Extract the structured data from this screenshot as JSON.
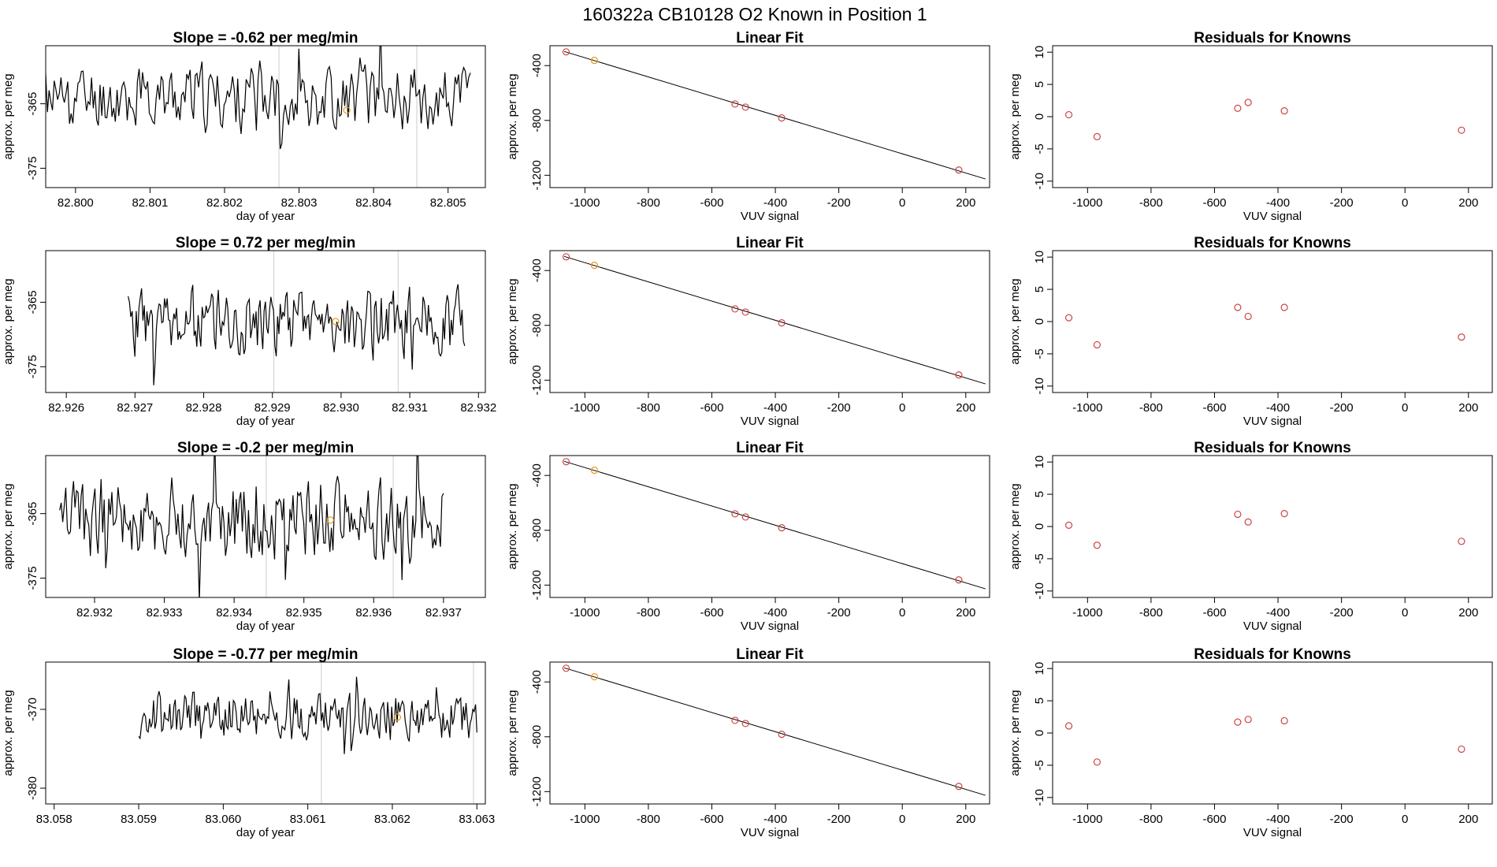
{
  "figure_title": "160322a      CB10128    O2 Known in Position  1",
  "colors": {
    "trace": "#000000",
    "point": "#cc4444",
    "highlight": "#e69a1a",
    "frame": "#000000",
    "vline": "#cccccc"
  },
  "chart_data": [
    {
      "type": "line",
      "role": "trace",
      "title": "Slope =  -0.62  per meg/min",
      "xlabel": "day of year",
      "ylabel": "approx. per meg",
      "xlim": [
        82.7996,
        82.8055
      ],
      "ylim": [
        -378,
        -356
      ],
      "xticks": [
        "82.800",
        "82.801",
        "82.802",
        "82.803",
        "82.804",
        "82.805"
      ],
      "xtick_values": [
        82.8,
        82.801,
        82.802,
        82.803,
        82.804,
        82.805
      ],
      "yticks": [
        "-365",
        "-375"
      ],
      "ytick_values": [
        -365,
        -375
      ],
      "x_start": 82.7996,
      "x_end": 82.8053,
      "y_base": -364,
      "amplitude": 4.5,
      "seed": 11,
      "vlines": [
        82.80273,
        82.80458
      ],
      "marker": {
        "x": 82.80364,
        "y": -366
      }
    },
    {
      "type": "scatter",
      "role": "fit",
      "title": "Linear Fit",
      "xlabel": "VUV signal",
      "ylabel": "approx. per meg",
      "xlim": [
        -1110,
        275
      ],
      "ylim": [
        -1290,
        -255
      ],
      "xticks": [
        "-1000",
        "-800",
        "-600",
        "-400",
        "-200",
        "0",
        "200"
      ],
      "xtick_values": [
        -1000,
        -800,
        -600,
        -400,
        -200,
        0,
        200
      ],
      "yticks": [
        "-400",
        "-800",
        "-1200"
      ],
      "ytick_values": [
        -400,
        -800,
        -1200
      ],
      "x": [
        -1059,
        -970,
        -527,
        -494,
        -380,
        178
      ],
      "y": [
        -300,
        -362,
        -680,
        -703,
        -782,
        -1162
      ],
      "highlight_index": 1,
      "line": {
        "x": [
          -1065,
          262
        ],
        "y": [
          -297,
          -1227
        ]
      }
    },
    {
      "type": "scatter",
      "role": "residuals",
      "title": "Residuals for Knowns",
      "xlabel": "VUV signal",
      "ylabel": "approx. per meg",
      "xlim": [
        -1110,
        275
      ],
      "ylim": [
        -11,
        11
      ],
      "xticks": [
        "-1000",
        "-800",
        "-600",
        "-400",
        "-200",
        "0",
        "200"
      ],
      "xtick_values": [
        -1000,
        -800,
        -600,
        -400,
        -200,
        0,
        200
      ],
      "yticks": [
        "10",
        "5",
        "0",
        "-5",
        "-10"
      ],
      "ytick_values": [
        10,
        5,
        0,
        -5,
        -10
      ],
      "x": [
        -1059,
        -970,
        -527,
        -494,
        -380,
        178
      ],
      "y": [
        0.3,
        -3.1,
        1.3,
        2.2,
        0.9,
        -2.1
      ]
    },
    {
      "type": "line",
      "role": "trace",
      "title": "Slope =  0.72  per meg/min",
      "xlabel": "day of year",
      "ylabel": "approx. per meg",
      "xlim": [
        82.9257,
        82.9321
      ],
      "ylim": [
        -379,
        -357
      ],
      "xticks": [
        "82.926",
        "82.927",
        "82.928",
        "82.929",
        "82.930",
        "82.931",
        "82.932"
      ],
      "xtick_values": [
        82.926,
        82.927,
        82.928,
        82.929,
        82.93,
        82.931,
        82.932
      ],
      "yticks": [
        "-365",
        "-375"
      ],
      "ytick_values": [
        -365,
        -375
      ],
      "x_start": 82.9269,
      "x_end": 82.9318,
      "y_base": -368,
      "amplitude": 4.5,
      "seed": 23,
      "vlines": [
        82.92902,
        82.93083
      ],
      "marker": {
        "x": 82.92992,
        "y": -368
      }
    },
    {
      "type": "scatter",
      "role": "fit",
      "title": "Linear Fit",
      "xlabel": "VUV signal",
      "ylabel": "approx. per meg",
      "xlim": [
        -1110,
        275
      ],
      "ylim": [
        -1290,
        -255
      ],
      "xticks": [
        "-1000",
        "-800",
        "-600",
        "-400",
        "-200",
        "0",
        "200"
      ],
      "xtick_values": [
        -1000,
        -800,
        -600,
        -400,
        -200,
        0,
        200
      ],
      "yticks": [
        "-400",
        "-800",
        "-1200"
      ],
      "ytick_values": [
        -400,
        -800,
        -1200
      ],
      "x": [
        -1059,
        -970,
        -527,
        -494,
        -380,
        178
      ],
      "y": [
        -300,
        -362,
        -680,
        -703,
        -782,
        -1162
      ],
      "highlight_index": 1,
      "line": {
        "x": [
          -1065,
          262
        ],
        "y": [
          -297,
          -1227
        ]
      }
    },
    {
      "type": "scatter",
      "role": "residuals",
      "title": "Residuals for Knowns",
      "xlabel": "VUV signal",
      "ylabel": "approx. per meg",
      "xlim": [
        -1110,
        275
      ],
      "ylim": [
        -11,
        11
      ],
      "xticks": [
        "-1000",
        "-800",
        "-600",
        "-400",
        "-200",
        "0",
        "200"
      ],
      "xtick_values": [
        -1000,
        -800,
        -600,
        -400,
        -200,
        0,
        200
      ],
      "yticks": [
        "10",
        "5",
        "0",
        "-5",
        "-10"
      ],
      "ytick_values": [
        10,
        5,
        0,
        -5,
        -10
      ],
      "x": [
        -1059,
        -970,
        -527,
        -494,
        -380,
        178
      ],
      "y": [
        0.6,
        -3.6,
        2.2,
        0.8,
        2.2,
        -2.4
      ]
    },
    {
      "type": "line",
      "role": "trace",
      "title": "Slope =  -0.2  per meg/min",
      "xlabel": "day of year",
      "ylabel": "approx. per meg",
      "xlim": [
        82.9313,
        82.9376
      ],
      "ylim": [
        -378,
        -356
      ],
      "xticks": [
        "82.932",
        "82.933",
        "82.934",
        "82.935",
        "82.936",
        "82.937"
      ],
      "xtick_values": [
        82.932,
        82.933,
        82.934,
        82.935,
        82.936,
        82.937
      ],
      "yticks": [
        "-365",
        "-375"
      ],
      "ytick_values": [
        -365,
        -375
      ],
      "x_start": 82.9315,
      "x_end": 82.937,
      "y_base": -366,
      "amplitude": 5.5,
      "seed": 37,
      "vlines": [
        82.93446,
        82.93628
      ],
      "marker": {
        "x": 82.93538,
        "y": -366
      }
    },
    {
      "type": "scatter",
      "role": "fit",
      "title": "Linear Fit",
      "xlabel": "VUV signal",
      "ylabel": "approx. per meg",
      "xlim": [
        -1110,
        275
      ],
      "ylim": [
        -1290,
        -255
      ],
      "xticks": [
        "-1000",
        "-800",
        "-600",
        "-400",
        "-200",
        "0",
        "200"
      ],
      "xtick_values": [
        -1000,
        -800,
        -600,
        -400,
        -200,
        0,
        200
      ],
      "yticks": [
        "-400",
        "-800",
        "-1200"
      ],
      "ytick_values": [
        -400,
        -800,
        -1200
      ],
      "x": [
        -1059,
        -970,
        -527,
        -494,
        -380,
        178
      ],
      "y": [
        -300,
        -362,
        -680,
        -703,
        -782,
        -1162
      ],
      "highlight_index": 1,
      "line": {
        "x": [
          -1065,
          262
        ],
        "y": [
          -297,
          -1227
        ]
      }
    },
    {
      "type": "scatter",
      "role": "residuals",
      "title": "Residuals for Knowns",
      "xlabel": "VUV signal",
      "ylabel": "approx. per meg",
      "xlim": [
        -1110,
        275
      ],
      "ylim": [
        -11,
        11
      ],
      "xticks": [
        "-1000",
        "-800",
        "-600",
        "-400",
        "-200",
        "0",
        "200"
      ],
      "xtick_values": [
        -1000,
        -800,
        -600,
        -400,
        -200,
        0,
        200
      ],
      "yticks": [
        "10",
        "5",
        "0",
        "-5",
        "-10"
      ],
      "ytick_values": [
        10,
        5,
        0,
        -5,
        -10
      ],
      "x": [
        -1059,
        -970,
        -527,
        -494,
        -380,
        178
      ],
      "y": [
        0.2,
        -2.9,
        1.9,
        0.7,
        2.0,
        -2.3
      ]
    },
    {
      "type": "line",
      "role": "trace",
      "title": "Slope =  -0.77  per meg/min",
      "xlabel": "day of year",
      "ylabel": "approx. per meg",
      "xlim": [
        83.0579,
        83.0631
      ],
      "ylim": [
        -382,
        -364
      ],
      "xticks": [
        "83.058",
        "83.059",
        "83.060",
        "83.061",
        "83.062",
        "83.063"
      ],
      "xtick_values": [
        83.058,
        83.059,
        83.06,
        83.061,
        83.062,
        83.063
      ],
      "yticks": [
        "-370",
        "-380"
      ],
      "ytick_values": [
        -370,
        -380
      ],
      "x_start": 83.059,
      "x_end": 83.063,
      "y_base": -371,
      "amplitude": 2.5,
      "seed": 53,
      "vlines": [
        83.06116,
        83.06296
      ],
      "marker": {
        "x": 83.06206,
        "y": -371
      }
    },
    {
      "type": "scatter",
      "role": "fit",
      "title": "Linear Fit",
      "xlabel": "VUV signal",
      "ylabel": "approx. per meg",
      "xlim": [
        -1110,
        275
      ],
      "ylim": [
        -1290,
        -255
      ],
      "xticks": [
        "-1000",
        "-800",
        "-600",
        "-400",
        "-200",
        "0",
        "200"
      ],
      "xtick_values": [
        -1000,
        -800,
        -600,
        -400,
        -200,
        0,
        200
      ],
      "yticks": [
        "-400",
        "-800",
        "-1200"
      ],
      "ytick_values": [
        -400,
        -800,
        -1200
      ],
      "x": [
        -1059,
        -970,
        -527,
        -494,
        -380,
        178
      ],
      "y": [
        -300,
        -362,
        -680,
        -703,
        -782,
        -1162
      ],
      "highlight_index": 1,
      "line": {
        "x": [
          -1065,
          262
        ],
        "y": [
          -297,
          -1227
        ]
      }
    },
    {
      "type": "scatter",
      "role": "residuals",
      "title": "Residuals for Knowns",
      "xlabel": "VUV signal",
      "ylabel": "approx. per meg",
      "xlim": [
        -1110,
        275
      ],
      "ylim": [
        -11,
        11
      ],
      "xticks": [
        "-1000",
        "-800",
        "-600",
        "-400",
        "-200",
        "0",
        "200"
      ],
      "xtick_values": [
        -1000,
        -800,
        -600,
        -400,
        -200,
        0,
        200
      ],
      "yticks": [
        "10",
        "5",
        "0",
        "-5",
        "-10"
      ],
      "ytick_values": [
        10,
        5,
        0,
        -5,
        -10
      ],
      "x": [
        -1059,
        -970,
        -527,
        -494,
        -380,
        178
      ],
      "y": [
        1.1,
        -4.5,
        1.7,
        2.1,
        1.9,
        -2.5
      ]
    }
  ]
}
